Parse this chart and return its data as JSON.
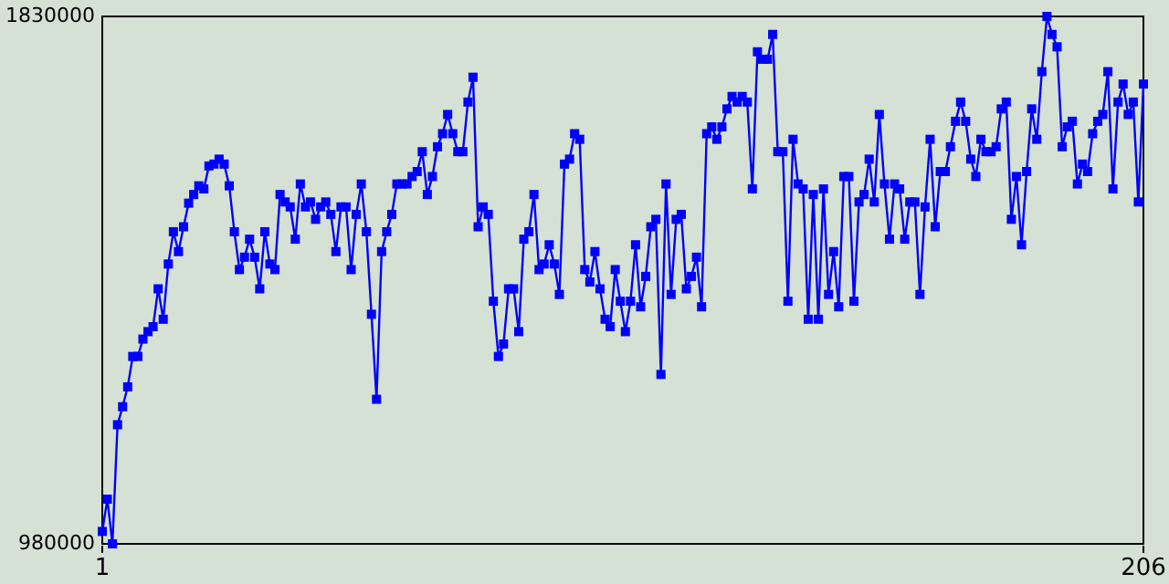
{
  "chart_data": {
    "type": "line",
    "marker": "square",
    "line_style": "solid",
    "grid": false,
    "x": [
      1,
      2,
      3,
      4,
      5,
      6,
      7,
      8,
      9,
      10,
      11,
      12,
      13,
      14,
      15,
      16,
      17,
      18,
      19,
      20,
      21,
      22,
      23,
      24,
      25,
      26,
      27,
      28,
      29,
      30,
      31,
      32,
      33,
      34,
      35,
      36,
      37,
      38,
      39,
      40,
      41,
      42,
      43,
      44,
      45,
      46,
      47,
      48,
      49,
      50,
      51,
      52,
      53,
      54,
      55,
      56,
      57,
      58,
      59,
      60,
      61,
      62,
      63,
      64,
      65,
      66,
      67,
      68,
      69,
      70,
      71,
      72,
      73,
      74,
      75,
      76,
      77,
      78,
      79,
      80,
      81,
      82,
      83,
      84,
      85,
      86,
      87,
      88,
      89,
      90,
      91,
      92,
      93,
      94,
      95,
      96,
      97,
      98,
      99,
      100,
      101,
      102,
      103,
      104,
      105,
      106,
      107,
      108,
      109,
      110,
      111,
      112,
      113,
      114,
      115,
      116,
      117,
      118,
      119,
      120,
      121,
      122,
      123,
      124,
      125,
      126,
      127,
      128,
      129,
      130,
      131,
      132,
      133,
      134,
      135,
      136,
      137,
      138,
      139,
      140,
      141,
      142,
      143,
      144,
      145,
      146,
      147,
      148,
      149,
      150,
      151,
      152,
      153,
      154,
      155,
      156,
      157,
      158,
      159,
      160,
      161,
      162,
      163,
      164,
      165,
      166,
      167,
      168,
      169,
      170,
      171,
      172,
      173,
      174,
      175,
      176,
      177,
      178,
      179,
      180,
      181,
      182,
      183,
      184,
      185,
      186,
      187,
      188,
      189,
      190,
      191,
      192,
      193,
      194,
      195,
      196,
      197,
      198,
      199,
      200,
      201,
      202,
      203,
      204,
      205,
      206
    ],
    "series": [
      {
        "color": "#0000ff",
        "values": [
          1000000,
          1052000,
          980000,
          1172000,
          1201000,
          1233000,
          1282000,
          1282000,
          1310000,
          1322000,
          1330000,
          1391000,
          1342000,
          1431000,
          1483000,
          1451000,
          1491000,
          1529000,
          1543000,
          1557000,
          1552000,
          1589000,
          1592000,
          1600000,
          1592000,
          1557000,
          1483000,
          1422000,
          1442000,
          1471000,
          1442000,
          1391000,
          1483000,
          1431000,
          1422000,
          1543000,
          1531000,
          1523000,
          1471000,
          1560000,
          1523000,
          1531000,
          1503000,
          1523000,
          1531000,
          1511000,
          1451000,
          1523000,
          1523000,
          1422000,
          1511000,
          1560000,
          1483000,
          1350000,
          1213000,
          1451000,
          1483000,
          1511000,
          1560000,
          1560000,
          1560000,
          1572000,
          1580000,
          1612000,
          1543000,
          1572000,
          1620000,
          1641000,
          1672000,
          1641000,
          1612000,
          1612000,
          1692000,
          1732000,
          1491000,
          1523000,
          1511000,
          1371000,
          1282000,
          1302000,
          1391000,
          1391000,
          1322000,
          1471000,
          1483000,
          1543000,
          1422000,
          1431000,
          1462000,
          1431000,
          1382000,
          1592000,
          1600000,
          1641000,
          1632000,
          1422000,
          1402000,
          1451000,
          1391000,
          1342000,
          1330000,
          1422000,
          1371000,
          1322000,
          1371000,
          1462000,
          1362000,
          1411000,
          1491000,
          1503000,
          1253000,
          1560000,
          1382000,
          1503000,
          1511000,
          1391000,
          1411000,
          1442000,
          1362000,
          1641000,
          1652000,
          1632000,
          1652000,
          1681000,
          1701000,
          1692000,
          1701000,
          1692000,
          1552000,
          1773000,
          1761000,
          1761000,
          1801000,
          1612000,
          1612000,
          1371000,
          1632000,
          1560000,
          1552000,
          1342000,
          1543000,
          1342000,
          1552000,
          1382000,
          1451000,
          1362000,
          1572000,
          1572000,
          1371000,
          1531000,
          1543000,
          1600000,
          1531000,
          1672000,
          1560000,
          1471000,
          1560000,
          1552000,
          1471000,
          1531000,
          1531000,
          1382000,
          1523000,
          1632000,
          1491000,
          1580000,
          1580000,
          1620000,
          1661000,
          1692000,
          1661000,
          1600000,
          1572000,
          1632000,
          1612000,
          1612000,
          1620000,
          1681000,
          1692000,
          1503000,
          1572000,
          1462000,
          1580000,
          1681000,
          1632000,
          1741000,
          1830000,
          1801000,
          1781000,
          1620000,
          1652000,
          1661000,
          1560000,
          1592000,
          1580000,
          1641000,
          1661000,
          1672000,
          1741000,
          1552000,
          1692000,
          1721000,
          1672000,
          1692000,
          1531000,
          1721000
        ]
      }
    ],
    "xlim": [
      1,
      206
    ],
    "xticks": [
      1,
      206
    ],
    "ylim": [
      980000,
      1830000
    ],
    "yticks": [
      980000,
      1830000
    ]
  }
}
